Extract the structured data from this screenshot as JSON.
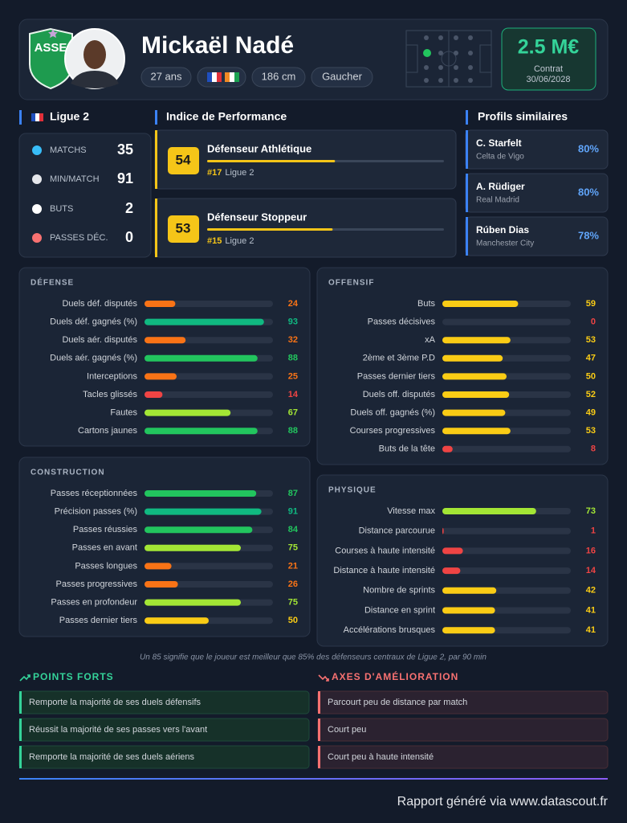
{
  "header": {
    "club_logo": "ASSE",
    "name": "Mickaël Nadé",
    "age": "27 ans",
    "height": "186 cm",
    "foot": "Gaucher",
    "value": "2.5 M€",
    "contract_label": "Contrat",
    "contract_date": "30/06/2028"
  },
  "league": {
    "name": "Ligue 2",
    "stats": [
      {
        "label": "MATCHS",
        "value": 35
      },
      {
        "label": "MIN/MATCH",
        "value": 91
      },
      {
        "label": "BUTS",
        "value": 2
      },
      {
        "label": "PASSES DÉC.",
        "value": 0
      }
    ]
  },
  "performance": {
    "title": "Indice de Performance",
    "profiles": [
      {
        "score": 54,
        "name": "Défenseur Athlétique",
        "rank": "#17",
        "league": "Ligue 2"
      },
      {
        "score": 53,
        "name": "Défenseur Stoppeur",
        "rank": "#15",
        "league": "Ligue 2"
      }
    ]
  },
  "similar": {
    "title": "Profils similaires",
    "players": [
      {
        "name": "C. Starfelt",
        "club": "Celta de Vigo",
        "match": "80%"
      },
      {
        "name": "A. Rüdiger",
        "club": "Real Madrid",
        "match": "80%"
      },
      {
        "name": "Rúben Dias",
        "club": "Manchester City",
        "match": "78%"
      }
    ]
  },
  "sections": [
    {
      "title": "DÉFENSE",
      "rows": [
        {
          "label": "Duels déf. disputés",
          "value": 24
        },
        {
          "label": "Duels déf. gagnés (%)",
          "value": 93
        },
        {
          "label": "Duels aér. disputés",
          "value": 32
        },
        {
          "label": "Duels aér. gagnés (%)",
          "value": 88
        },
        {
          "label": "Interceptions",
          "value": 25
        },
        {
          "label": "Tacles glissés",
          "value": 14
        },
        {
          "label": "Fautes",
          "value": 67
        },
        {
          "label": "Cartons jaunes",
          "value": 88
        }
      ]
    },
    {
      "title": "OFFENSIF",
      "rows": [
        {
          "label": "Buts",
          "value": 59
        },
        {
          "label": "Passes décisives",
          "value": 0
        },
        {
          "label": "xA",
          "value": 53
        },
        {
          "label": "2ème et 3ème P.D",
          "value": 47
        },
        {
          "label": "Passes dernier tiers",
          "value": 50
        },
        {
          "label": "Duels off. disputés",
          "value": 52
        },
        {
          "label": "Duels off. gagnés (%)",
          "value": 49
        },
        {
          "label": "Courses progressives",
          "value": 53
        },
        {
          "label": "Buts de la tête",
          "value": 8
        }
      ]
    },
    {
      "title": "CONSTRUCTION",
      "rows": [
        {
          "label": "Passes réceptionnées",
          "value": 87
        },
        {
          "label": "Précision passes (%)",
          "value": 91
        },
        {
          "label": "Passes réussies",
          "value": 84
        },
        {
          "label": "Passes en avant",
          "value": 75
        },
        {
          "label": "Passes longues",
          "value": 21
        },
        {
          "label": "Passes progressives",
          "value": 26
        },
        {
          "label": "Passes en profondeur",
          "value": 75
        },
        {
          "label": "Passes dernier tiers",
          "value": 50
        }
      ]
    },
    {
      "title": "PHYSIQUE",
      "rows": [
        {
          "label": "Vitesse max",
          "value": 73
        },
        {
          "label": "Distance parcourue",
          "value": 1
        },
        {
          "label": "Courses à haute intensité",
          "value": 16
        },
        {
          "label": "Distance à haute intensité",
          "value": 14
        },
        {
          "label": "Nombre de sprints",
          "value": 42
        },
        {
          "label": "Distance en sprint",
          "value": 41
        },
        {
          "label": "Accélérations brusques",
          "value": 41
        }
      ]
    }
  ],
  "note": "Un 85 signifie que le joueur est meilleur que 85% des défenseurs centraux de Ligue 2, par 90 min",
  "strengths": {
    "title": "POINTS FORTS",
    "items": [
      "Remporte la majorité de ses duels défensifs",
      "Réussit la majorité de ses passes vers l'avant",
      "Remporte la majorité de ses duels aériens"
    ]
  },
  "improvements": {
    "title": "AXES D'AMÉLIORATION",
    "items": [
      "Parcourt peu de distance par match",
      "Court peu",
      "Court peu à haute intensité"
    ]
  },
  "footer": "Rapport généré via www.datascout.fr"
}
